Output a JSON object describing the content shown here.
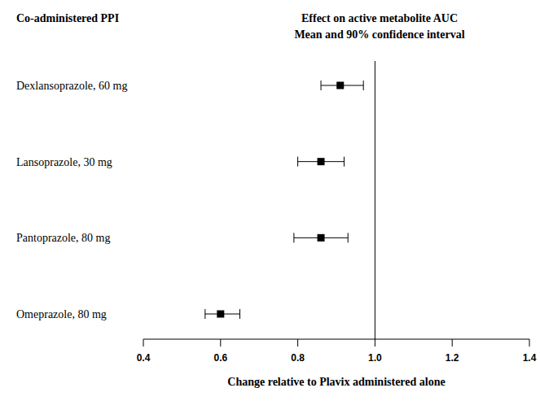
{
  "chart_data": {
    "type": "forest",
    "orientation": "horizontal",
    "title": "Effect on active metabolite AUC",
    "subtitle": "Mean and 90% confidence interval",
    "ylabel": "Co-administered PPI",
    "xlabel": "Change relative to Plavix administered alone",
    "categories": [
      "Dexlansoprazole, 60 mg",
      "Lansoprazole, 30 mg",
      "Pantoprazole, 80 mg",
      "Omeprazole, 80 mg"
    ],
    "values": [
      0.91,
      0.86,
      0.86,
      0.6
    ],
    "ci_low": [
      0.86,
      0.8,
      0.79,
      0.56
    ],
    "ci_high": [
      0.97,
      0.92,
      0.93,
      0.65
    ],
    "reference_x": 1,
    "color": "#000000",
    "marker": "square",
    "xlim": [
      0.4,
      1.4
    ],
    "xticks": [
      0.4,
      0.6,
      0.8,
      {
        "value": 1,
        "label": "1.0"
      },
      1.2,
      1.4
    ],
    "grid": false
  }
}
